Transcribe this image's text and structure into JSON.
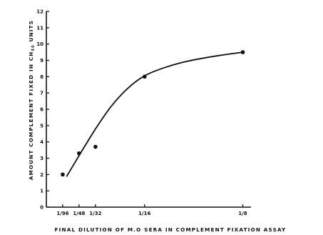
{
  "chart_data": {
    "type": "scatter",
    "title": "",
    "xlabel": "FINAL DILUTION OF M.O SERA IN COMPLEMENT FIXATION ASSAY",
    "ylabel": {
      "prefix": "AMOUNT COMPLEMENT FIXED IN CH",
      "subscript": "50",
      "suffix": " UNITS"
    },
    "x_scale": "linear",
    "xlim": [
      0,
      0.1302
    ],
    "ylim": [
      0,
      12
    ],
    "x_ticks": [
      {
        "value": 0.0104,
        "label": "1/96"
      },
      {
        "value": 0.0208,
        "label": "1/48"
      },
      {
        "value": 0.03125,
        "label": "1/32"
      },
      {
        "value": 0.0625,
        "label": "1/16"
      },
      {
        "value": 0.125,
        "label": "1/8"
      }
    ],
    "y_ticks": [
      0,
      1,
      2,
      3,
      4,
      5,
      6,
      7,
      8,
      9,
      10,
      11,
      12
    ],
    "y_tick_labels": [
      "0",
      "1",
      "2",
      "3",
      "4",
      "5",
      "6",
      "7",
      "8",
      "9",
      "10",
      "11",
      "12"
    ],
    "points": [
      {
        "x": 0.0104,
        "y": 2.0
      },
      {
        "x": 0.0208,
        "y": 3.3
      },
      {
        "x": 0.03125,
        "y": 3.7
      },
      {
        "x": 0.0625,
        "y": 8.0
      },
      {
        "x": 0.125,
        "y": 9.5
      }
    ],
    "fit_curve": [
      {
        "x": 0.013,
        "y": 1.9
      },
      {
        "x": 0.022,
        "y": 3.35
      },
      {
        "x": 0.031,
        "y": 4.75
      },
      {
        "x": 0.041,
        "y": 6.15
      },
      {
        "x": 0.052,
        "y": 7.3
      },
      {
        "x": 0.0625,
        "y": 8.05
      },
      {
        "x": 0.075,
        "y": 8.55
      },
      {
        "x": 0.09,
        "y": 8.95
      },
      {
        "x": 0.11,
        "y": 9.3
      },
      {
        "x": 0.125,
        "y": 9.5
      }
    ],
    "grid": false,
    "legend": "none",
    "color": "#111111"
  }
}
